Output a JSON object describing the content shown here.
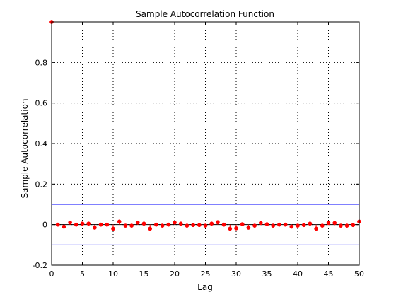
{
  "chart_data": {
    "type": "scatter",
    "title": "Sample Autocorrelation Function",
    "xlabel": "Lag",
    "ylabel": "Sample Autocorrelation",
    "xlim": [
      0,
      50
    ],
    "ylim": [
      -0.2,
      1.0
    ],
    "xticks": [
      0,
      5,
      10,
      15,
      20,
      25,
      30,
      35,
      40,
      45,
      50
    ],
    "yticks": [
      -0.2,
      0,
      0.2,
      0.4,
      0.6,
      0.8
    ],
    "ytick_labels": [
      "-0.2",
      "0",
      "0.2",
      "0.4",
      "0.6",
      "0.8"
    ],
    "grid": true,
    "stem_style": "markers-with-vertical-stems",
    "confidence_bounds": [
      0.1,
      -0.1
    ],
    "colors": {
      "markers": "#ff0000",
      "stems": "#ff0000",
      "bounds": "#0000ff",
      "zero_line": "#000000",
      "grid": "#000000"
    },
    "series": [
      {
        "x": [
          0,
          1,
          2,
          3,
          4,
          5,
          6,
          7,
          8,
          9,
          10,
          11,
          12,
          13,
          14,
          15,
          16,
          17,
          18,
          19,
          20,
          21,
          22,
          23,
          24,
          25,
          26,
          27,
          28,
          29,
          30,
          31,
          32,
          33,
          34,
          35,
          36,
          37,
          38,
          39,
          40,
          41,
          42,
          43,
          44,
          45,
          46,
          47,
          48,
          49,
          50
        ],
        "values": [
          1.0,
          0.0,
          -0.01,
          0.01,
          0.0,
          0.005,
          0.005,
          -0.015,
          0.0,
          0.0,
          -0.02,
          0.015,
          -0.005,
          -0.005,
          0.01,
          0.005,
          -0.02,
          0.0,
          -0.005,
          0.0,
          0.01,
          0.005,
          -0.005,
          -0.002,
          -0.002,
          -0.005,
          0.005,
          0.012,
          0.0,
          -0.02,
          -0.018,
          0.002,
          -0.015,
          -0.005,
          0.008,
          0.002,
          -0.005,
          0.0,
          0.0,
          -0.01,
          -0.005,
          -0.002,
          0.005,
          -0.02,
          -0.005,
          0.008,
          0.008,
          -0.005,
          -0.005,
          -0.002,
          0.015
        ]
      }
    ]
  }
}
